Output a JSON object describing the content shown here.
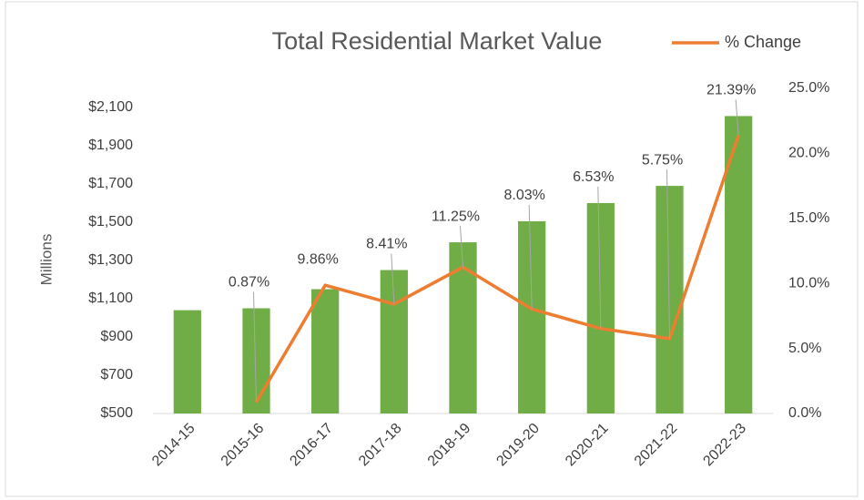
{
  "chart_data": {
    "type": "bar",
    "title": "Total Residential Market Value",
    "y_label": "Millions",
    "categories": [
      "2014-15",
      "2015-16",
      "2016-17",
      "2017-18",
      "2018-19",
      "2019-20",
      "2020-21",
      "2021-22",
      "2022-23"
    ],
    "series": [
      {
        "type": "bar",
        "color": "#70ad47",
        "values": [
          1040,
          1050,
          1150,
          1250,
          1395,
          1505,
          1600,
          1690,
          2055
        ]
      },
      {
        "type": "line",
        "name": "% Change",
        "color": "#ed7d31",
        "axis": "y2",
        "values": [
          null,
          0.87,
          9.86,
          8.41,
          11.25,
          8.03,
          6.53,
          5.75,
          21.39
        ],
        "value_labels": [
          null,
          "0.87%",
          "9.86%",
          "8.41%",
          "11.25%",
          "8.03%",
          "6.53%",
          "5.75%",
          "21.39%"
        ]
      }
    ],
    "ylim": [
      500,
      2200
    ],
    "yticks": [
      {
        "value": 500,
        "label": "$500"
      },
      {
        "value": 700,
        "label": "$700"
      },
      {
        "value": 900,
        "label": "$900"
      },
      {
        "value": 1100,
        "label": "$1,100"
      },
      {
        "value": 1300,
        "label": "$1,300"
      },
      {
        "value": 1500,
        "label": "$1,500"
      },
      {
        "value": 1700,
        "label": "$1,700"
      },
      {
        "value": 1900,
        "label": "$1,900"
      },
      {
        "value": 2100,
        "label": "$2,100"
      }
    ],
    "y2lim": [
      0,
      25
    ],
    "y2ticks": [
      {
        "value": 0,
        "label": "0.0%"
      },
      {
        "value": 5,
        "label": "5.0%"
      },
      {
        "value": 10,
        "label": "10.0%"
      },
      {
        "value": 15,
        "label": "15.0%"
      },
      {
        "value": 20,
        "label": "20.0%"
      },
      {
        "value": 25,
        "label": "25.0%"
      }
    ],
    "legend": "top-right",
    "grid": false
  }
}
